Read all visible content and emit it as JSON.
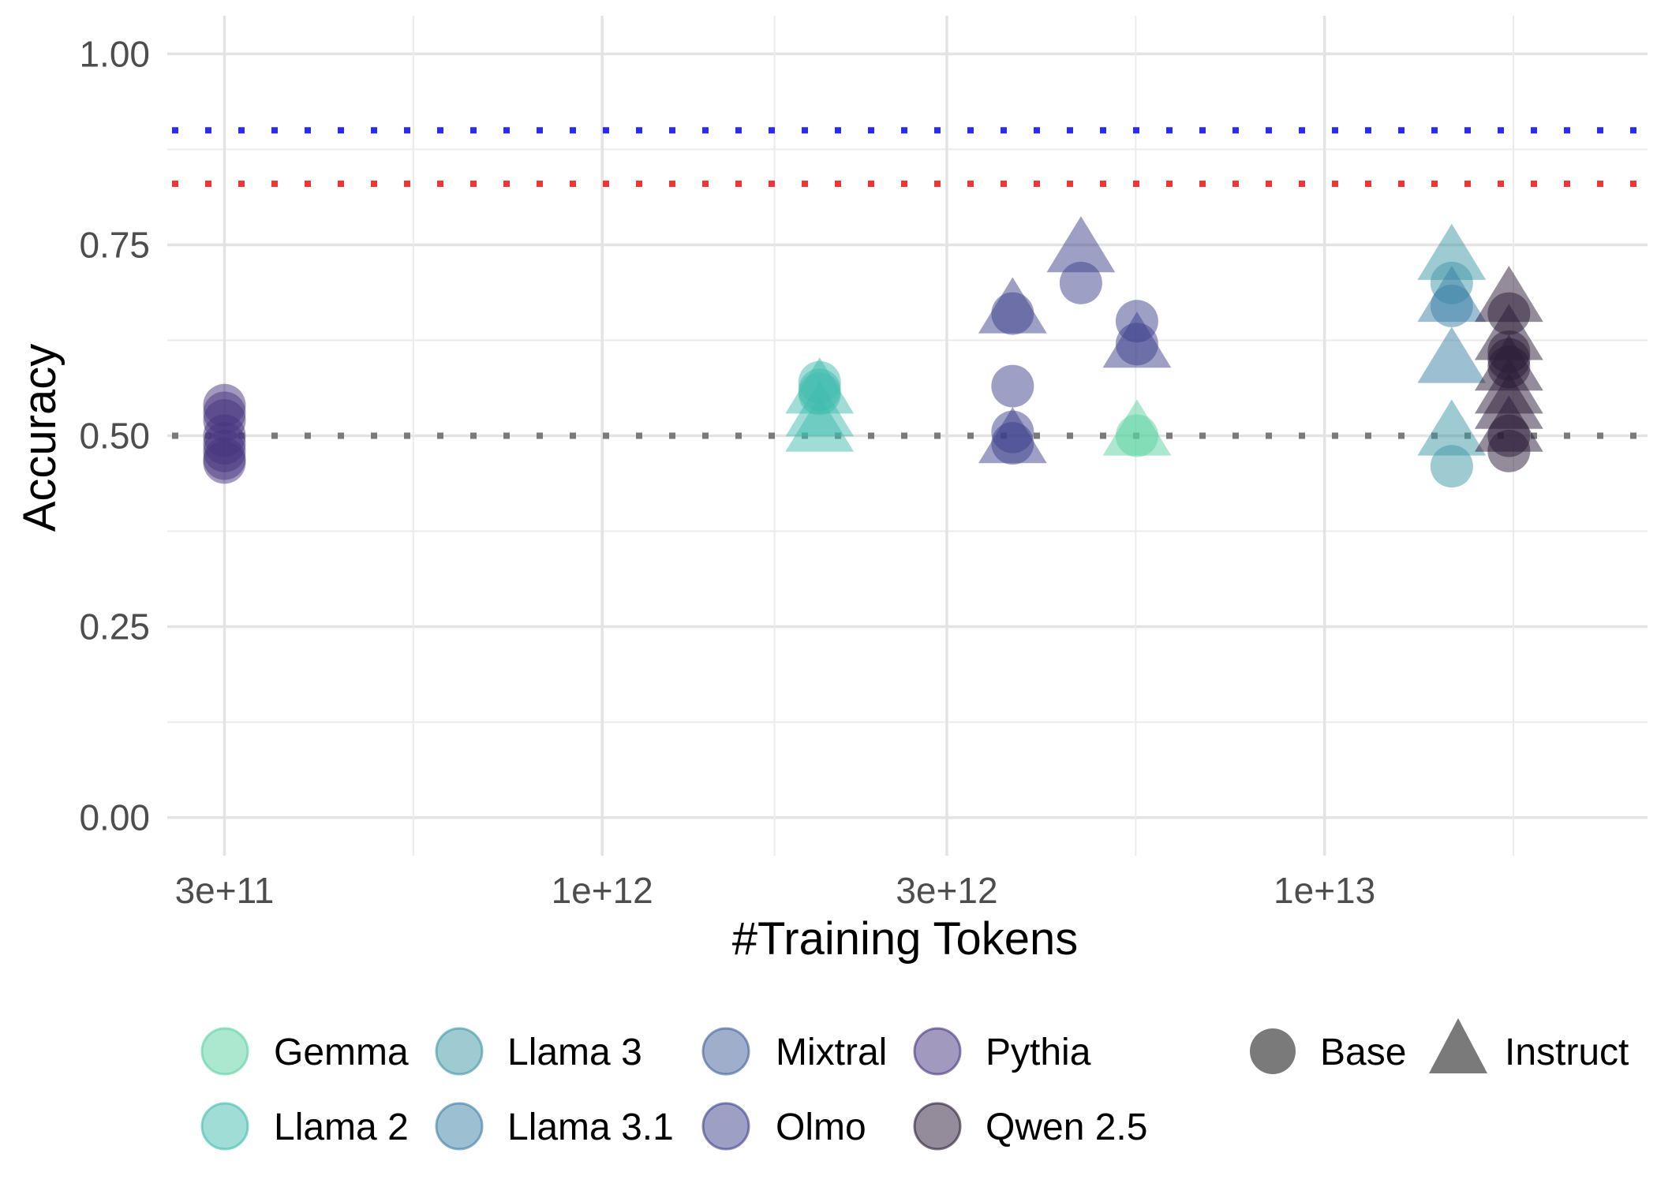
{
  "chart_data": {
    "type": "scatter",
    "title": "",
    "xlabel": "#Training Tokens",
    "ylabel": "Accuracy",
    "x_scale": "log10",
    "xlim": [
      250000000000,
      28000000000000
    ],
    "ylim": [
      -0.05,
      1.05
    ],
    "x_ticks": [
      {
        "value": 300000000000,
        "label": "3e+11"
      },
      {
        "value": 1000000000000,
        "label": "1e+12"
      },
      {
        "value": 3000000000000,
        "label": "3e+12"
      },
      {
        "value": 10000000000000,
        "label": "1e+13"
      }
    ],
    "y_ticks": [
      {
        "value": 0.0,
        "label": "0.00"
      },
      {
        "value": 0.25,
        "label": "0.25"
      },
      {
        "value": 0.5,
        "label": "0.50"
      },
      {
        "value": 0.75,
        "label": "0.75"
      },
      {
        "value": 1.0,
        "label": "1.00"
      }
    ],
    "grid": true,
    "legend_position": "bottom",
    "reference_lines": [
      {
        "y": 0.9,
        "color": "#2b2bf0",
        "style": "dotted"
      },
      {
        "y": 0.83,
        "color": "#f03535",
        "style": "dotted"
      },
      {
        "y": 0.5,
        "color": "#7a7a7a",
        "style": "dotted"
      }
    ],
    "series": [
      {
        "name": "Pythia",
        "color": "#46337e",
        "points": [
          {
            "x": 300000000000,
            "y": 0.54,
            "type": "Base"
          },
          {
            "x": 300000000000,
            "y": 0.53,
            "type": "Base"
          },
          {
            "x": 300000000000,
            "y": 0.52,
            "type": "Base"
          },
          {
            "x": 300000000000,
            "y": 0.5,
            "type": "Base"
          },
          {
            "x": 300000000000,
            "y": 0.49,
            "type": "Base"
          },
          {
            "x": 300000000000,
            "y": 0.48,
            "type": "Base"
          },
          {
            "x": 300000000000,
            "y": 0.47,
            "type": "Base"
          },
          {
            "x": 300000000000,
            "y": 0.465,
            "type": "Base"
          }
        ]
      },
      {
        "name": "Llama 2",
        "color": "#3fbcae",
        "points": [
          {
            "x": 2000000000000,
            "y": 0.57,
            "type": "Base"
          },
          {
            "x": 2000000000000,
            "y": 0.56,
            "type": "Base"
          },
          {
            "x": 2000000000000,
            "y": 0.555,
            "type": "Base"
          },
          {
            "x": 2000000000000,
            "y": 0.56,
            "type": "Instruct"
          },
          {
            "x": 2000000000000,
            "y": 0.53,
            "type": "Instruct"
          },
          {
            "x": 2000000000000,
            "y": 0.51,
            "type": "Instruct"
          }
        ]
      },
      {
        "name": "Olmo",
        "color": "#3b3f8c",
        "points": [
          {
            "x": 3700000000000,
            "y": 0.66,
            "type": "Base"
          },
          {
            "x": 3700000000000,
            "y": 0.565,
            "type": "Base"
          },
          {
            "x": 3700000000000,
            "y": 0.505,
            "type": "Base"
          },
          {
            "x": 3700000000000,
            "y": 0.49,
            "type": "Base"
          },
          {
            "x": 3700000000000,
            "y": 0.665,
            "type": "Instruct"
          },
          {
            "x": 3700000000000,
            "y": 0.495,
            "type": "Instruct"
          },
          {
            "x": 4600000000000,
            "y": 0.7,
            "type": "Base"
          },
          {
            "x": 4600000000000,
            "y": 0.745,
            "type": "Instruct"
          },
          {
            "x": 5500000000000,
            "y": 0.65,
            "type": "Base"
          },
          {
            "x": 5500000000000,
            "y": 0.62,
            "type": "Base"
          },
          {
            "x": 5500000000000,
            "y": 0.62,
            "type": "Instruct"
          }
        ]
      },
      {
        "name": "Gemma",
        "color": "#5ad1a0",
        "points": [
          {
            "x": 5500000000000,
            "y": 0.5,
            "type": "Base"
          },
          {
            "x": 5500000000000,
            "y": 0.505,
            "type": "Instruct"
          }
        ]
      },
      {
        "name": "Llama 3",
        "color": "#3e95a6",
        "points": [
          {
            "x": 15000000000000,
            "y": 0.7,
            "type": "Base"
          },
          {
            "x": 15000000000000,
            "y": 0.46,
            "type": "Base"
          },
          {
            "x": 15000000000000,
            "y": 0.735,
            "type": "Instruct"
          },
          {
            "x": 15000000000000,
            "y": 0.505,
            "type": "Instruct"
          }
        ]
      },
      {
        "name": "Llama 3.1",
        "color": "#3b7fa6",
        "points": [
          {
            "x": 15000000000000,
            "y": 0.67,
            "type": "Base"
          },
          {
            "x": 15000000000000,
            "y": 0.68,
            "type": "Instruct"
          },
          {
            "x": 15000000000000,
            "y": 0.6,
            "type": "Instruct"
          }
        ]
      },
      {
        "name": "Qwen 2.5",
        "color": "#2a1a35",
        "points": [
          {
            "x": 18000000000000,
            "y": 0.66,
            "type": "Base"
          },
          {
            "x": 18000000000000,
            "y": 0.61,
            "type": "Base"
          },
          {
            "x": 18000000000000,
            "y": 0.6,
            "type": "Base"
          },
          {
            "x": 18000000000000,
            "y": 0.59,
            "type": "Base"
          },
          {
            "x": 18000000000000,
            "y": 0.5,
            "type": "Base"
          },
          {
            "x": 18000000000000,
            "y": 0.48,
            "type": "Base"
          },
          {
            "x": 18000000000000,
            "y": 0.68,
            "type": "Instruct"
          },
          {
            "x": 18000000000000,
            "y": 0.63,
            "type": "Instruct"
          },
          {
            "x": 18000000000000,
            "y": 0.59,
            "type": "Instruct"
          },
          {
            "x": 18000000000000,
            "y": 0.56,
            "type": "Instruct"
          },
          {
            "x": 18000000000000,
            "y": 0.54,
            "type": "Instruct"
          },
          {
            "x": 18000000000000,
            "y": 0.51,
            "type": "Instruct"
          }
        ]
      }
    ],
    "legend": {
      "model_entries": [
        {
          "label": "Gemma",
          "color": "#5ad1a0"
        },
        {
          "label": "Llama 2",
          "color": "#3fbcae"
        },
        {
          "label": "Llama 3",
          "color": "#3e95a6"
        },
        {
          "label": "Llama 3.1",
          "color": "#3b7fa6"
        },
        {
          "label": "Mixtral",
          "color": "#3f5f98"
        },
        {
          "label": "Olmo",
          "color": "#3b3f8c"
        },
        {
          "label": "Pythia",
          "color": "#46337e"
        },
        {
          "label": "Qwen 2.5",
          "color": "#2a1a35"
        }
      ],
      "shape_entries": [
        {
          "label": "Base",
          "shape": "circle"
        },
        {
          "label": "Instruct",
          "shape": "triangle"
        }
      ]
    }
  }
}
